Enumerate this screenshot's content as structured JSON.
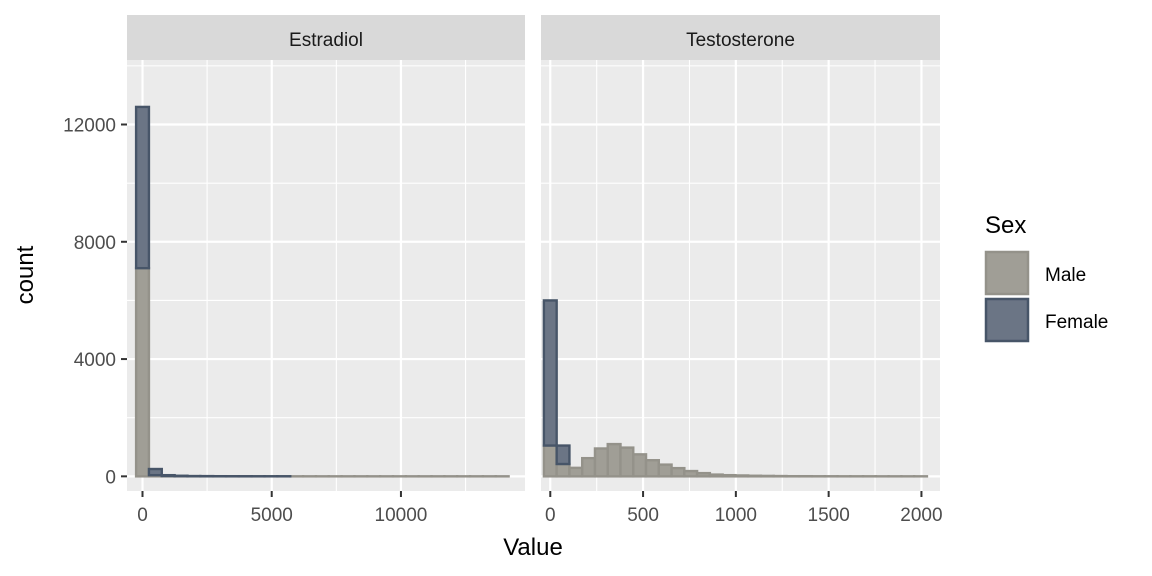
{
  "chart_data": {
    "type": "bar",
    "subtype": "faceted-histogram",
    "xlabel": "Value",
    "ylabel": "count",
    "ylim": [
      -500,
      14200
    ],
    "y_ticks": [
      0,
      4000,
      8000,
      12000
    ],
    "y_tick_labels": [
      "0",
      "4000",
      "8000",
      "12000"
    ],
    "grid": true,
    "legend": {
      "title": "Sex",
      "position": "right",
      "entries": [
        {
          "name": "Male",
          "fill": "#a09e96",
          "stroke": "#94928a"
        },
        {
          "name": "Female",
          "fill": "#6b7585",
          "stroke": "#475568"
        }
      ]
    },
    "colors": {
      "panel_bg": "#ebebeb",
      "grid": "#ffffff",
      "strip_bg": "#d9d9d9",
      "tick": "#333333"
    },
    "facets": [
      {
        "title": "Estradiol",
        "xlim": [
          -600,
          14800
        ],
        "x_ticks": [
          0,
          5000,
          10000
        ],
        "x_tick_labels": [
          "0",
          "5000",
          "10000"
        ],
        "bin_width": 497,
        "bins_start": [
          -248,
          249,
          746,
          1243,
          1740,
          2237,
          2734,
          3231,
          3728,
          4225,
          4722,
          5219,
          5716,
          6213,
          6710,
          7207,
          7704,
          8201,
          8698,
          9195,
          9692,
          10189,
          10686,
          11183,
          11680,
          12177,
          12674,
          13171,
          13668
        ],
        "series": [
          {
            "name": "Female",
            "values": [
              12600,
              250,
              40,
              20,
              10,
              8,
              5,
              4,
              3,
              2,
              2,
              2,
              1,
              1,
              1,
              1,
              1,
              1,
              1,
              1,
              1,
              1,
              1,
              1,
              1,
              1,
              1,
              1,
              1
            ]
          },
          {
            "name": "Male",
            "values": [
              7100,
              40,
              10,
              5,
              3,
              2,
              2,
              1,
              1,
              1,
              1,
              1,
              1,
              1,
              1,
              1,
              1,
              1,
              1,
              1,
              1,
              1,
              1,
              1,
              1,
              1,
              1,
              1,
              1
            ]
          }
        ]
      },
      {
        "title": "Testosterone",
        "xlim": [
          -50,
          2100
        ],
        "x_ticks": [
          0,
          500,
          1000,
          1500,
          2000
        ],
        "x_tick_labels": [
          "0",
          "500",
          "1000",
          "1500",
          "2000"
        ],
        "bin_width": 68.8,
        "bins_start": [
          -34.4,
          34.4,
          103.2,
          172.0,
          240.8,
          309.6,
          378.4,
          447.2,
          516.0,
          584.8,
          653.6,
          722.4,
          791.2,
          860.0,
          928.8,
          997.6,
          1066.4,
          1135.2,
          1204.0,
          1272.8,
          1341.6,
          1410.4,
          1479.2,
          1548.0,
          1616.8,
          1685.6,
          1754.4,
          1823.2,
          1892.0,
          1960.8
        ],
        "series": [
          {
            "name": "Female",
            "values": [
              6000,
              1050,
              100,
              30,
              10,
              5,
              3,
              2,
              2,
              1,
              1,
              1,
              1,
              1,
              1,
              1,
              1,
              1,
              1,
              1,
              1,
              1,
              1,
              1,
              1,
              1,
              1,
              1,
              1,
              1
            ]
          },
          {
            "name": "Male",
            "values": [
              1050,
              420,
              290,
              620,
              950,
              1100,
              980,
              750,
              550,
              400,
              280,
              180,
              110,
              60,
              40,
              30,
              20,
              15,
              10,
              5,
              5,
              3,
              3,
              2,
              2,
              2,
              1,
              1,
              1,
              1
            ]
          }
        ]
      }
    ]
  }
}
